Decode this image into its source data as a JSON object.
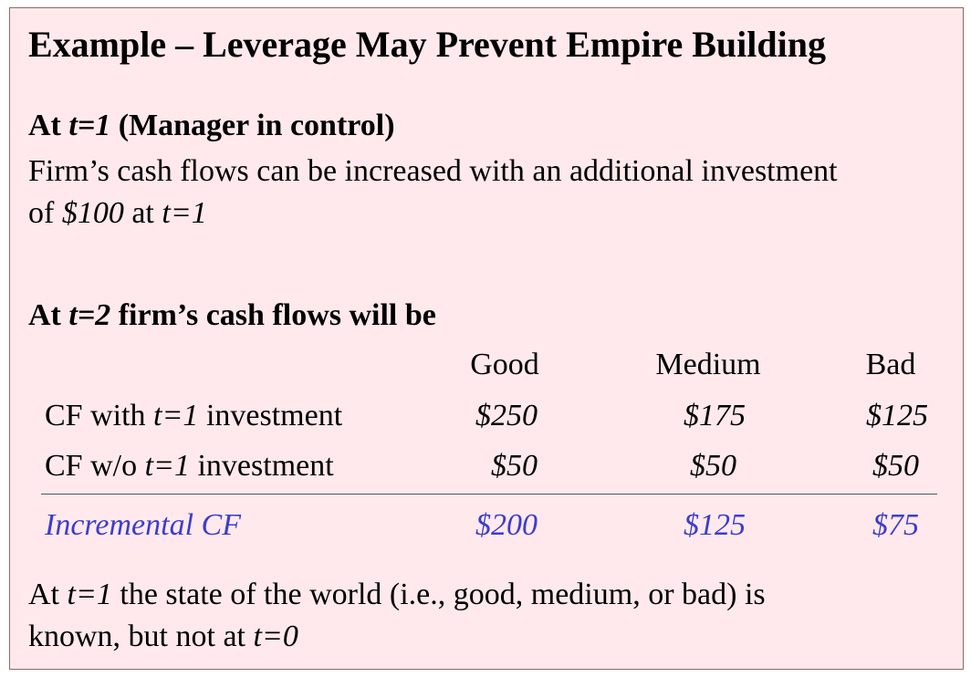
{
  "title": "Example – Leverage May Prevent Empire Building",
  "section1": {
    "heading_pre": "At ",
    "heading_var": "t=1",
    "heading_post": " (Manager in control)",
    "line1": "Firm’s cash flows can be increased with an additional investment",
    "line2_pre": "of ",
    "line2_amount": "$100",
    "line2_mid": " at ",
    "line2_var": "t=1"
  },
  "section2": {
    "heading_pre": "At ",
    "heading_var": "t=2",
    "heading_post": " firm’s cash flows will be"
  },
  "table": {
    "columns": [
      "Good",
      "Medium",
      "Bad"
    ],
    "rows": [
      {
        "label_pre": "CF with ",
        "label_var": "t=1",
        "label_post": " investment",
        "values": [
          "$250",
          "$175",
          "$125"
        ]
      },
      {
        "label_pre": "CF w/o ",
        "label_var": "t=1",
        "label_post": " investment",
        "values": [
          "$50",
          "$50",
          "$50"
        ]
      }
    ],
    "total": {
      "label": "Incremental CF",
      "values": [
        "$200",
        "$125",
        "$75"
      ]
    }
  },
  "footer": {
    "line1_pre": "At ",
    "line1_var": "t=1",
    "line1_post": " the state of the world (i.e., good, medium, or bad) is",
    "line2_pre": "known, but not at ",
    "line2_var": "t=0"
  },
  "colors": {
    "background": "#ffe9ec",
    "accent": "#3d3dcc"
  }
}
